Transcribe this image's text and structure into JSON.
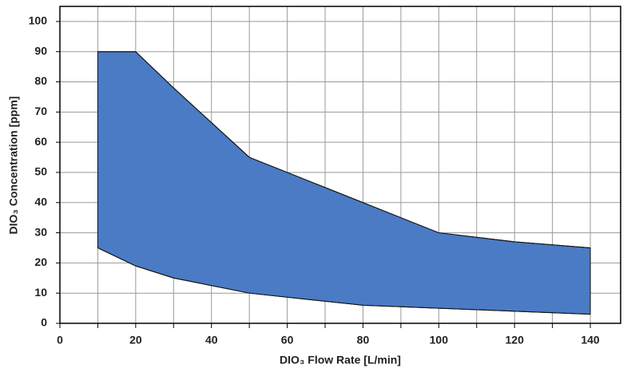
{
  "chart_data": {
    "type": "area_range",
    "xlabel": "DIO₃ Flow Rate [L/min]",
    "ylabel": "DIO₃ Concentration [ppm]",
    "x": [
      10,
      20,
      30,
      50,
      70,
      80,
      100,
      120,
      140
    ],
    "high": [
      90,
      90,
      78,
      55,
      45,
      40,
      30,
      27,
      25
    ],
    "low": [
      25,
      19,
      15,
      10,
      7.3,
      6,
      5,
      4,
      3
    ],
    "color": "#4a7bc4",
    "xlim": [
      0,
      148
    ],
    "xticks": [
      0,
      20,
      40,
      60,
      80,
      100,
      120,
      140
    ],
    "xminor": [
      10,
      30,
      50,
      70,
      90,
      110,
      130
    ],
    "ylim": [
      0,
      105
    ],
    "yticks": [
      0,
      10,
      20,
      30,
      40,
      50,
      60,
      70,
      80,
      90,
      100
    ],
    "grid": true
  }
}
